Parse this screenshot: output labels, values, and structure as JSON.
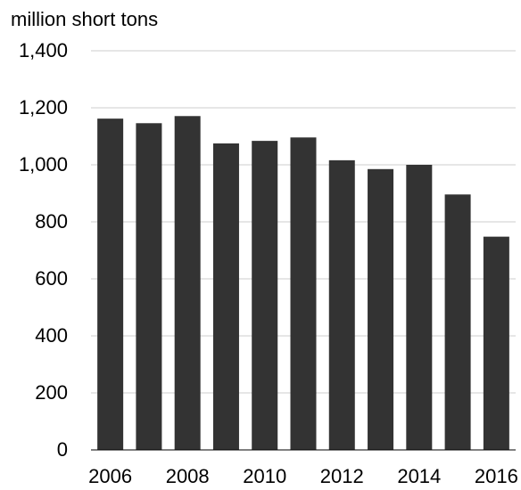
{
  "chart_data": {
    "type": "bar",
    "ylabel": "million short tons",
    "ylim": [
      0,
      1400
    ],
    "yticks": [
      0,
      200,
      400,
      600,
      800,
      1000,
      1200,
      1400
    ],
    "ytick_labels": [
      "0",
      "200",
      "400",
      "600",
      "800",
      "1,000",
      "1,200",
      "1,400"
    ],
    "categories": [
      "2006",
      "2007",
      "2008",
      "2009",
      "2010",
      "2011",
      "2012",
      "2013",
      "2014",
      "2015",
      "2016"
    ],
    "xtick_labels": [
      "2006",
      "2008",
      "2010",
      "2012",
      "2014",
      "2016"
    ],
    "values": [
      1162,
      1146,
      1171,
      1075,
      1084,
      1096,
      1016,
      985,
      1000,
      896,
      748
    ],
    "grid": true,
    "colors": {
      "bar": "#333333",
      "grid": "#cccccc"
    }
  }
}
